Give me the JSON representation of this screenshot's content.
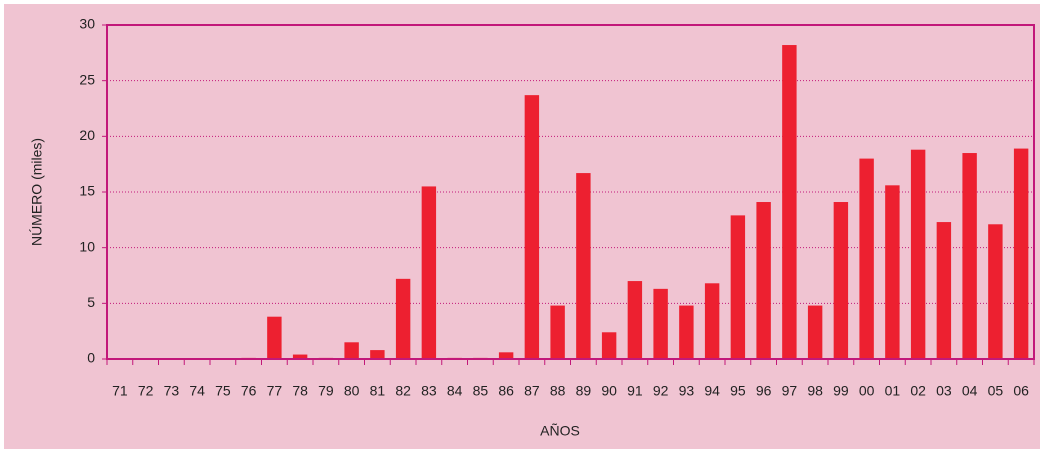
{
  "chart_data": {
    "type": "bar",
    "xlabel": "AÑOS",
    "ylabel": "NÚMERO (miles)",
    "categories": [
      "71",
      "72",
      "73",
      "74",
      "75",
      "76",
      "77",
      "78",
      "79",
      "80",
      "81",
      "82",
      "83",
      "84",
      "85",
      "86",
      "87",
      "88",
      "89",
      "90",
      "91",
      "92",
      "93",
      "94",
      "95",
      "96",
      "97",
      "98",
      "99",
      "00",
      "01",
      "02",
      "03",
      "04",
      "05",
      "06"
    ],
    "values": [
      0,
      0,
      0,
      0,
      0,
      0.1,
      3.8,
      0.4,
      0.1,
      1.5,
      0.8,
      7.2,
      15.5,
      0.1,
      0.1,
      0.6,
      23.7,
      4.8,
      16.7,
      2.4,
      7.0,
      6.3,
      4.8,
      6.8,
      12.9,
      14.1,
      28.2,
      4.8,
      14.1,
      18.0,
      15.6,
      18.8,
      12.3,
      18.5,
      12.1,
      18.9
    ],
    "color": "#ed2030",
    "ylim": [
      0,
      30
    ],
    "yticks": [
      0,
      5,
      10,
      15,
      20,
      25,
      30
    ],
    "grid": true
  }
}
